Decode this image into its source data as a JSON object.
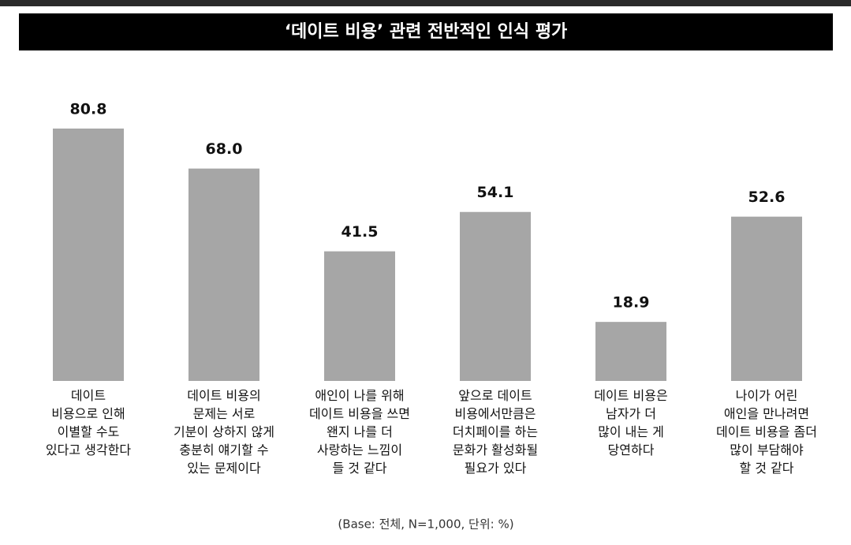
{
  "chart_data": {
    "type": "bar",
    "title": "‘데이트 비용’ 관련 전반적인 인식 평가",
    "categories": [
      "데이트\n비용으로 인해\n이별할 수도\n있다고 생각한다",
      "데이트 비용의\n문제는 서로\n기분이 상하지 않게\n충분히 얘기할 수\n있는 문제이다",
      "애인이 나를 위해\n데이트 비용을 쓰면\n왠지 나를 더\n사랑하는 느낌이\n들 것 같다",
      "앞으로 데이트\n비용에서만큼은\n더치페이를 하는\n문화가 활성화될\n필요가 있다",
      "데이트 비용은\n남자가 더\n많이 내는 게\n당연하다",
      "나이가 어린\n애인을 만나려면\n데이트 비용을 좀더\n많이 부담해야\n할 것 같다"
    ],
    "values": [
      80.8,
      68.0,
      41.5,
      54.1,
      18.9,
      52.6
    ],
    "value_labels": [
      "80.8",
      "68.0",
      "41.5",
      "54.1",
      "18.9",
      "52.6"
    ],
    "color": "#a6a6a6",
    "note": "(Base: 전체, N=1,000, 단위: %)"
  }
}
